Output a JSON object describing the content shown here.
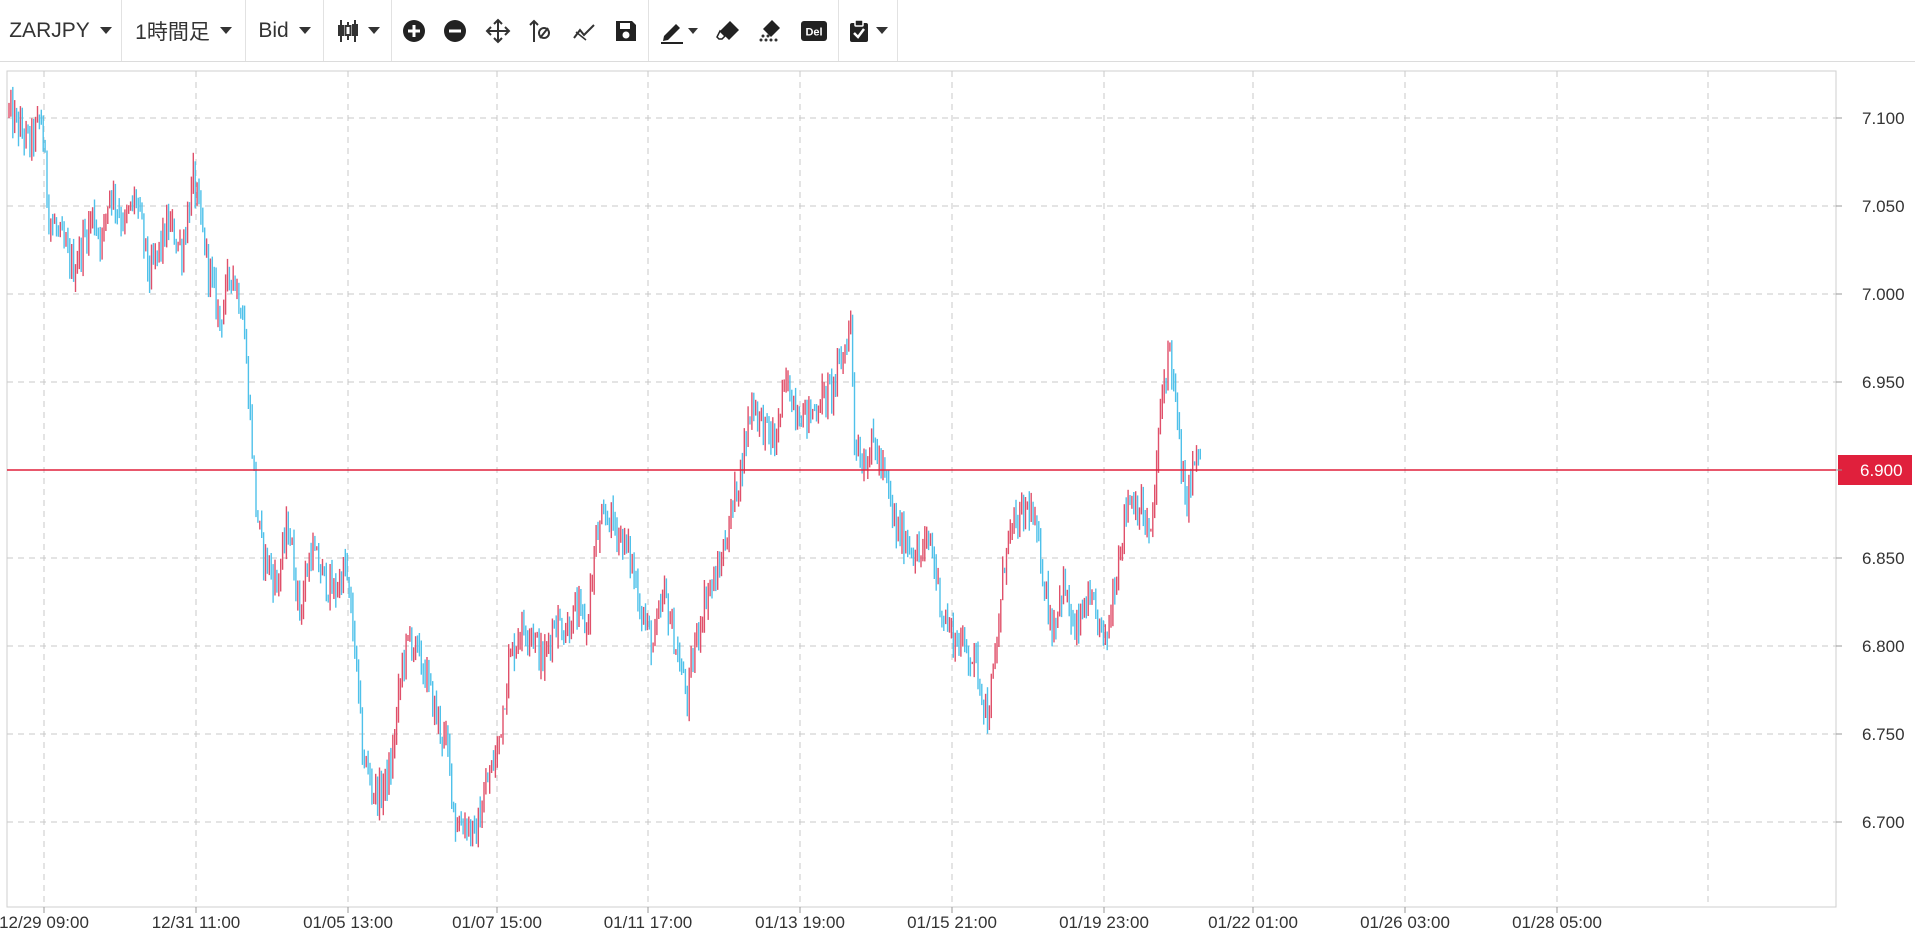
{
  "toolbar": {
    "symbol": "ZARJPY",
    "timeframe": "1時間足",
    "price_type": "Bid",
    "buttons": [
      {
        "name": "chart-type-icon",
        "label": "chart type"
      },
      {
        "name": "zoom-in-icon"
      },
      {
        "name": "zoom-out-icon"
      },
      {
        "name": "move-icon"
      },
      {
        "name": "crosshair-icon"
      },
      {
        "name": "indicator-icon"
      },
      {
        "name": "save-icon"
      },
      {
        "name": "pen-icon"
      },
      {
        "name": "eraser-icon"
      },
      {
        "name": "eraser-all-icon"
      },
      {
        "name": "delete-icon",
        "label": "Del"
      },
      {
        "name": "clipboard-icon"
      }
    ]
  },
  "colors": {
    "up": "#e0506a",
    "down": "#4fc1ea",
    "current_price_line": "#e0203c",
    "grid": "#c8c8c8"
  },
  "chart_data": {
    "type": "ohlc",
    "symbol": "ZARJPY",
    "x_ticks": [
      "12/29 09:00",
      "12/31 11:00",
      "01/05 13:00",
      "01/07 15:00",
      "01/11 17:00",
      "01/13 19:00",
      "01/15 21:00",
      "01/19 23:00",
      "01/22 01:00",
      "01/26 03:00",
      "01/28 05:00"
    ],
    "y_ticks": [
      "7.100",
      "7.050",
      "7.000",
      "6.950",
      "6.900",
      "6.850",
      "6.800",
      "6.750",
      "6.700"
    ],
    "ylim": [
      6.655,
      7.125
    ],
    "current_price": 6.9,
    "current_price_label": "6.900",
    "grid": true,
    "anchors": [
      [
        0,
        7.105
      ],
      [
        12,
        7.085
      ],
      [
        18,
        7.1
      ],
      [
        22,
        7.045
      ],
      [
        35,
        7.015
      ],
      [
        45,
        7.045
      ],
      [
        50,
        7.03
      ],
      [
        54,
        7.06
      ],
      [
        62,
        7.04
      ],
      [
        68,
        7.055
      ],
      [
        75,
        7.01
      ],
      [
        85,
        7.04
      ],
      [
        92,
        7.025
      ],
      [
        98,
        7.065
      ],
      [
        106,
        7.015
      ],
      [
        112,
        6.985
      ],
      [
        118,
        7.015
      ],
      [
        124,
        6.99
      ],
      [
        128,
        6.93
      ],
      [
        131,
        6.88
      ],
      [
        134,
        6.855
      ],
      [
        142,
        6.835
      ],
      [
        148,
        6.87
      ],
      [
        154,
        6.82
      ],
      [
        160,
        6.855
      ],
      [
        166,
        6.84
      ],
      [
        172,
        6.83
      ],
      [
        178,
        6.845
      ],
      [
        183,
        6.8
      ],
      [
        187,
        6.74
      ],
      [
        192,
        6.72
      ],
      [
        196,
        6.715
      ],
      [
        202,
        6.73
      ],
      [
        208,
        6.79
      ],
      [
        212,
        6.805
      ],
      [
        220,
        6.785
      ],
      [
        226,
        6.76
      ],
      [
        232,
        6.74
      ],
      [
        236,
        6.7
      ],
      [
        242,
        6.7
      ],
      [
        246,
        6.69
      ],
      [
        252,
        6.72
      ],
      [
        258,
        6.74
      ],
      [
        264,
        6.79
      ],
      [
        270,
        6.81
      ],
      [
        276,
        6.81
      ],
      [
        282,
        6.79
      ],
      [
        288,
        6.815
      ],
      [
        294,
        6.81
      ],
      [
        300,
        6.82
      ],
      [
        305,
        6.81
      ],
      [
        310,
        6.86
      ],
      [
        316,
        6.875
      ],
      [
        322,
        6.865
      ],
      [
        328,
        6.85
      ],
      [
        334,
        6.82
      ],
      [
        340,
        6.8
      ],
      [
        346,
        6.83
      ],
      [
        352,
        6.8
      ],
      [
        358,
        6.77
      ],
      [
        362,
        6.8
      ],
      [
        368,
        6.83
      ],
      [
        374,
        6.84
      ],
      [
        380,
        6.87
      ],
      [
        386,
        6.9
      ],
      [
        392,
        6.94
      ],
      [
        398,
        6.925
      ],
      [
        404,
        6.915
      ],
      [
        410,
        6.95
      ],
      [
        416,
        6.935
      ],
      [
        422,
        6.93
      ],
      [
        428,
        6.94
      ],
      [
        434,
        6.945
      ],
      [
        440,
        6.965
      ],
      [
        444,
        6.985
      ],
      [
        446,
        6.92
      ],
      [
        450,
        6.905
      ],
      [
        456,
        6.915
      ],
      [
        462,
        6.895
      ],
      [
        468,
        6.865
      ],
      [
        474,
        6.86
      ],
      [
        480,
        6.85
      ],
      [
        486,
        6.86
      ],
      [
        492,
        6.82
      ],
      [
        498,
        6.805
      ],
      [
        504,
        6.8
      ],
      [
        510,
        6.79
      ],
      [
        516,
        6.76
      ],
      [
        520,
        6.79
      ],
      [
        526,
        6.86
      ],
      [
        532,
        6.87
      ],
      [
        538,
        6.88
      ],
      [
        544,
        6.85
      ],
      [
        550,
        6.81
      ],
      [
        556,
        6.835
      ],
      [
        562,
        6.805
      ],
      [
        568,
        6.825
      ],
      [
        574,
        6.815
      ],
      [
        578,
        6.8
      ],
      [
        584,
        6.845
      ],
      [
        590,
        6.885
      ],
      [
        596,
        6.88
      ],
      [
        602,
        6.86
      ],
      [
        608,
        6.945
      ],
      [
        612,
        6.97
      ],
      [
        616,
        6.925
      ],
      [
        620,
        6.88
      ],
      [
        624,
        6.9
      ],
      [
        628,
        6.91
      ]
    ]
  }
}
